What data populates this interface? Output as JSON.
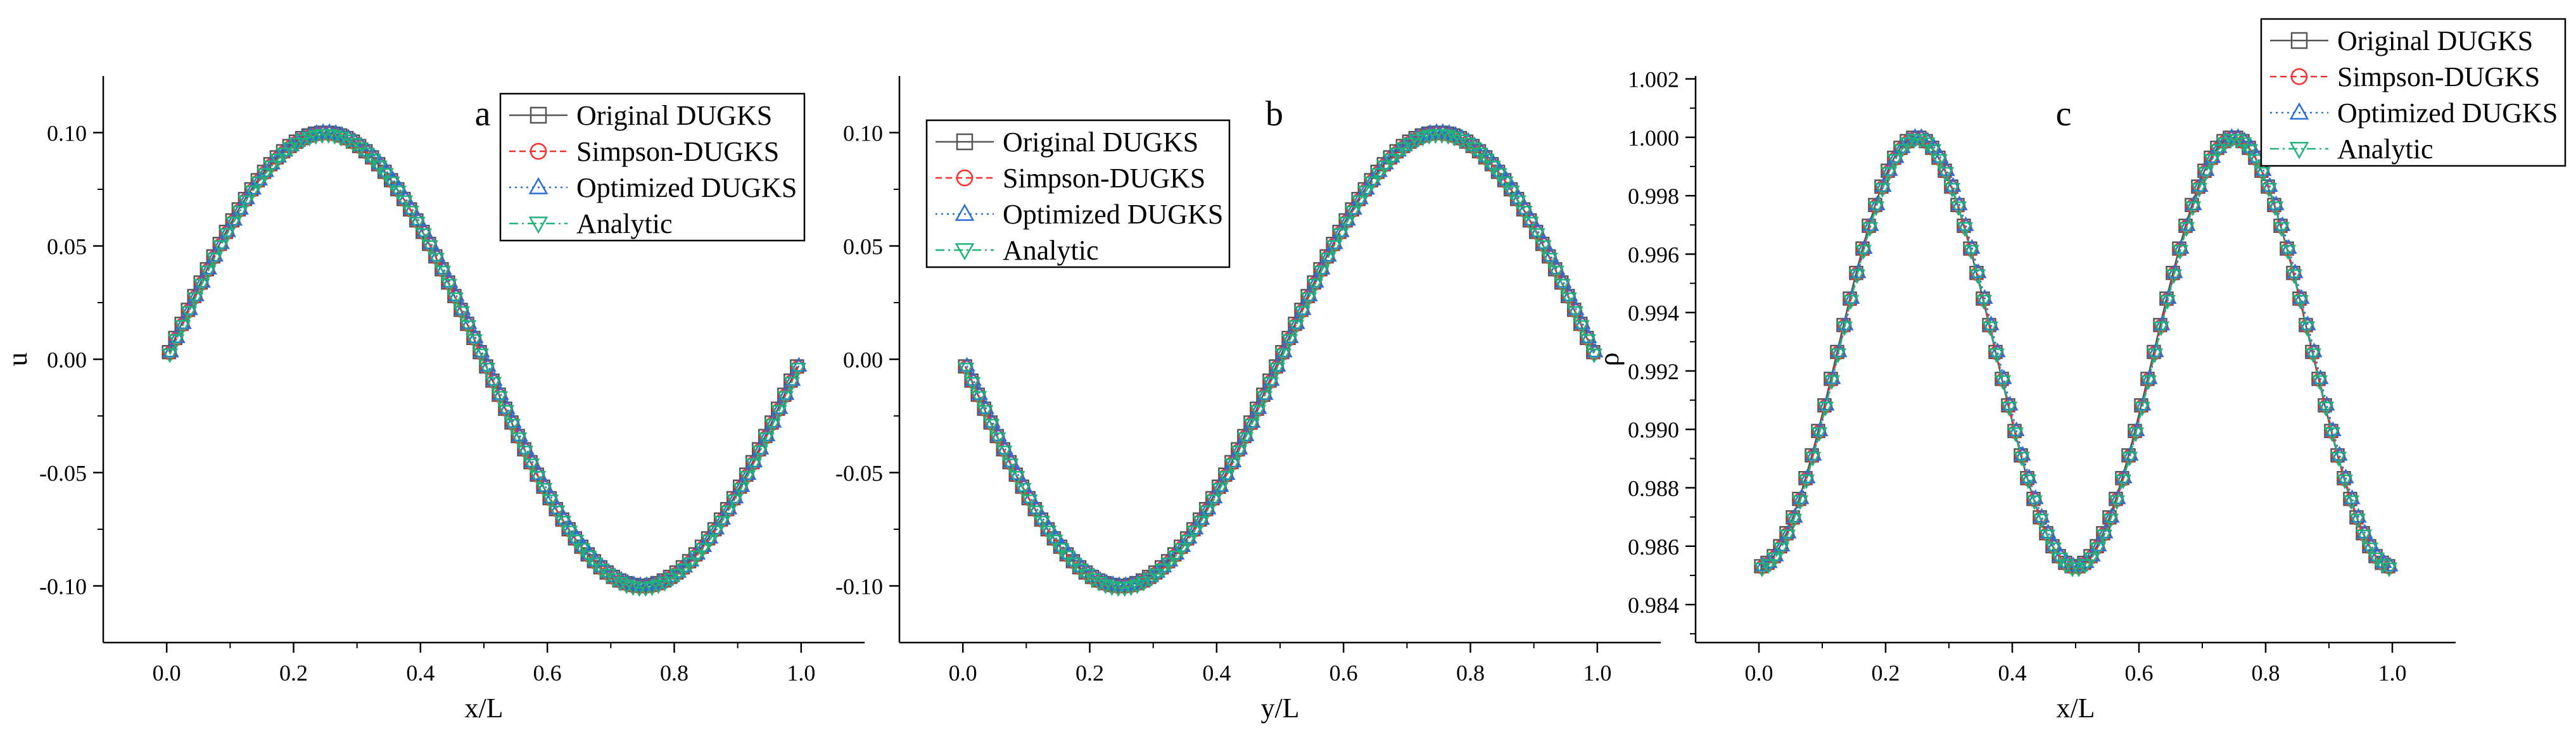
{
  "chart_data": [
    {
      "type": "line",
      "panel_label": "a",
      "xlabel": "x/L",
      "ylabel": "u",
      "xlim": [
        -0.1,
        1.1
      ],
      "ylim": [
        -0.125,
        0.125
      ],
      "xticks": [
        0.0,
        0.2,
        0.4,
        0.6,
        0.8,
        1.0
      ],
      "xtick_labels": [
        "0.0",
        "0.2",
        "0.4",
        "0.6",
        "0.8",
        "1.0"
      ],
      "yticks": [
        -0.1,
        -0.05,
        0.0,
        0.05,
        0.1
      ],
      "ytick_labels": [
        "-0.10",
        "-0.05",
        "0.00",
        "0.05",
        "0.10"
      ],
      "function": "0.1*sin(2*pi*x)",
      "x_range": [
        0.005,
        0.995
      ],
      "n_points": 100,
      "legend_position": "top-right",
      "grid": false,
      "series": [
        {
          "name": "Original DUGKS",
          "color": "#555555",
          "marker": "square",
          "dash": ""
        },
        {
          "name": "Simpson-DUGKS",
          "color": "#ff2a2a",
          "marker": "circle",
          "dash": "10,6"
        },
        {
          "name": "Optimized DUGKS",
          "color": "#2a6fd6",
          "marker": "triangle-up",
          "dash": "3,6"
        },
        {
          "name": "Analytic",
          "color": "#1fb37a",
          "marker": "triangle-down",
          "dash": "14,6,3,6"
        }
      ]
    },
    {
      "type": "line",
      "panel_label": "b",
      "xlabel": "y/L",
      "ylabel": "",
      "xlim": [
        -0.1,
        1.1
      ],
      "ylim": [
        -0.125,
        0.125
      ],
      "xticks": [
        0.0,
        0.2,
        0.4,
        0.6,
        0.8,
        1.0
      ],
      "xtick_labels": [
        "0.0",
        "0.2",
        "0.4",
        "0.6",
        "0.8",
        "1.0"
      ],
      "yticks": [
        -0.1,
        -0.05,
        0.0,
        0.05,
        0.1
      ],
      "ytick_labels": [
        "-0.10",
        "-0.05",
        "0.00",
        "0.05",
        "0.10"
      ],
      "function": "-0.1*sin(2*pi*y)",
      "x_range": [
        0.005,
        0.995
      ],
      "n_points": 100,
      "legend_position": "top-left",
      "grid": false,
      "series": [
        {
          "name": "Original DUGKS",
          "color": "#555555",
          "marker": "square",
          "dash": ""
        },
        {
          "name": "Simpson-DUGKS",
          "color": "#ff2a2a",
          "marker": "circle",
          "dash": "10,6"
        },
        {
          "name": "Optimized DUGKS",
          "color": "#2a6fd6",
          "marker": "triangle-up",
          "dash": "3,6"
        },
        {
          "name": "Analytic",
          "color": "#1fb37a",
          "marker": "triangle-down",
          "dash": "14,6,3,6"
        }
      ]
    },
    {
      "type": "line",
      "panel_label": "c",
      "xlabel": "x/L",
      "ylabel": "ρ",
      "xlim": [
        -0.1,
        1.1
      ],
      "ylim": [
        0.9827,
        1.0021
      ],
      "xticks": [
        0.0,
        0.2,
        0.4,
        0.6,
        0.8,
        1.0
      ],
      "xtick_labels": [
        "0.0",
        "0.2",
        "0.4",
        "0.6",
        "0.8",
        "1.0"
      ],
      "yticks": [
        0.984,
        0.986,
        0.988,
        0.99,
        0.992,
        0.994,
        0.996,
        0.998,
        1.0,
        1.002
      ],
      "ytick_labels": [
        "0.984",
        "0.986",
        "0.988",
        "0.990",
        "0.992",
        "0.994",
        "0.996",
        "0.998",
        "1.000",
        "1.002"
      ],
      "function": "0.99265 + 0.00735*cos(4*pi*(x-0.25))",
      "x_range": [
        0.005,
        0.995
      ],
      "n_points": 100,
      "legend_position": "top-right",
      "grid": false,
      "series": [
        {
          "name": "Original DUGKS",
          "color": "#555555",
          "marker": "square",
          "dash": ""
        },
        {
          "name": "Simpson-DUGKS",
          "color": "#ff2a2a",
          "marker": "circle",
          "dash": "10,6"
        },
        {
          "name": "Optimized DUGKS",
          "color": "#2a6fd6",
          "marker": "triangle-up",
          "dash": "3,6"
        },
        {
          "name": "Analytic",
          "color": "#1fb37a",
          "marker": "triangle-down",
          "dash": "14,6,3,6"
        }
      ]
    }
  ]
}
